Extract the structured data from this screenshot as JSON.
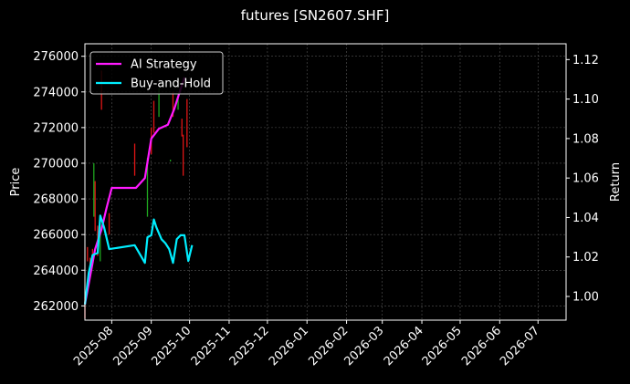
{
  "chart_data": {
    "type": "line",
    "title": "futures [SN2607.SHF]",
    "ylabel_left": "Price",
    "ylabel_right": "Return",
    "x_ticks": [
      "2025-08",
      "2025-09",
      "2025-10",
      "2025-11",
      "2025-12",
      "2026-01",
      "2026-02",
      "2026-03",
      "2026-04",
      "2026-05",
      "2026-06",
      "2026-07"
    ],
    "x_range": [
      "2025-07-11",
      "2026-07-23"
    ],
    "y_left_range": [
      261200,
      276700
    ],
    "y_left_ticks": [
      262000,
      264000,
      266000,
      268000,
      270000,
      272000,
      274000,
      276000
    ],
    "y_right_range": [
      0.988,
      1.128
    ],
    "y_right_ticks": [
      1.0,
      1.02,
      1.04,
      1.06,
      1.08,
      1.1,
      1.12
    ],
    "grid": true,
    "legend_position": "top-left",
    "colors": {
      "background": "#000000",
      "grid": "#555555",
      "up_candle": "#1fa81f",
      "down_candle": "#e01515",
      "ai_strategy": "#ff1aff",
      "buy_and_hold": "#00eeff"
    },
    "series": [
      {
        "name": "AI Strategy",
        "axis": "right",
        "points": [
          [
            "2025-07-11",
            0.996
          ],
          [
            "2025-07-15",
            1.01
          ],
          [
            "2025-07-19",
            1.024
          ],
          [
            "2025-07-24",
            1.034
          ],
          [
            "2025-07-28",
            1.045
          ],
          [
            "2025-08-01",
            1.055
          ],
          [
            "2025-08-08",
            1.055
          ],
          [
            "2025-08-14",
            1.055
          ],
          [
            "2025-08-20",
            1.055
          ],
          [
            "2025-08-27",
            1.06
          ],
          [
            "2025-09-01",
            1.08
          ],
          [
            "2025-09-07",
            1.085
          ],
          [
            "2025-09-14",
            1.087
          ],
          [
            "2025-09-19",
            1.095
          ],
          [
            "2025-09-23",
            1.103
          ],
          [
            "2025-09-27",
            1.111
          ]
        ]
      },
      {
        "name": "Buy-and-Hold",
        "axis": "right",
        "points": [
          [
            "2025-07-11",
            0.996
          ],
          [
            "2025-07-14",
            1.012
          ],
          [
            "2025-07-17",
            1.021
          ],
          [
            "2025-07-21",
            1.022
          ],
          [
            "2025-07-23",
            1.041
          ],
          [
            "2025-07-26",
            1.035
          ],
          [
            "2025-07-30",
            1.024
          ],
          [
            "2025-08-19",
            1.026
          ],
          [
            "2025-08-27",
            1.017
          ],
          [
            "2025-08-29",
            1.03
          ],
          [
            "2025-09-01",
            1.031
          ],
          [
            "2025-09-03",
            1.039
          ],
          [
            "2025-09-05",
            1.035
          ],
          [
            "2025-09-09",
            1.029
          ],
          [
            "2025-09-12",
            1.027
          ],
          [
            "2025-09-15",
            1.024
          ],
          [
            "2025-09-18",
            1.017
          ],
          [
            "2025-09-21",
            1.029
          ],
          [
            "2025-09-24",
            1.031
          ],
          [
            "2025-09-27",
            1.031
          ],
          [
            "2025-09-30",
            1.018
          ],
          [
            "2025-10-03",
            1.026
          ]
        ]
      }
    ],
    "candles": [
      {
        "date": "2025-07-11",
        "low": 261300,
        "high": 262500,
        "dir": "down"
      },
      {
        "date": "2025-07-13",
        "low": 264500,
        "high": 265300,
        "dir": "down"
      },
      {
        "date": "2025-07-15",
        "low": 263800,
        "high": 264700,
        "dir": "down"
      },
      {
        "date": "2025-07-17",
        "low": 264300,
        "high": 265200,
        "dir": "down"
      },
      {
        "date": "2025-07-18",
        "low": 267000,
        "high": 270000,
        "dir": "up"
      },
      {
        "date": "2025-07-19",
        "low": 266200,
        "high": 269000,
        "dir": "down"
      },
      {
        "date": "2025-07-21",
        "low": 264800,
        "high": 266500,
        "dir": "down"
      },
      {
        "date": "2025-07-23",
        "low": 264500,
        "high": 267000,
        "dir": "up"
      },
      {
        "date": "2025-07-24",
        "low": 273000,
        "high": 275200,
        "dir": "down"
      },
      {
        "date": "2025-07-30",
        "low": 266000,
        "high": 267200,
        "dir": "down"
      },
      {
        "date": "2025-08-19",
        "low": 269300,
        "high": 271100,
        "dir": "down"
      },
      {
        "date": "2025-08-29",
        "low": 267000,
        "high": 270300,
        "dir": "up"
      },
      {
        "date": "2025-09-01",
        "low": 270500,
        "high": 272000,
        "dir": "down"
      },
      {
        "date": "2025-09-03",
        "low": 271700,
        "high": 273500,
        "dir": "down"
      },
      {
        "date": "2025-09-07",
        "low": 272600,
        "high": 274200,
        "dir": "up"
      },
      {
        "date": "2025-09-16",
        "low": 270100,
        "high": 270200,
        "dir": "up"
      },
      {
        "date": "2025-09-18",
        "low": 272600,
        "high": 274000,
        "dir": "down"
      },
      {
        "date": "2025-09-22",
        "low": 273000,
        "high": 273800,
        "dir": "up"
      },
      {
        "date": "2025-09-25",
        "low": 271500,
        "high": 272500,
        "dir": "down"
      },
      {
        "date": "2025-09-26",
        "low": 269300,
        "high": 271600,
        "dir": "down"
      },
      {
        "date": "2025-09-29",
        "low": 270900,
        "high": 273600,
        "dir": "down"
      }
    ]
  }
}
